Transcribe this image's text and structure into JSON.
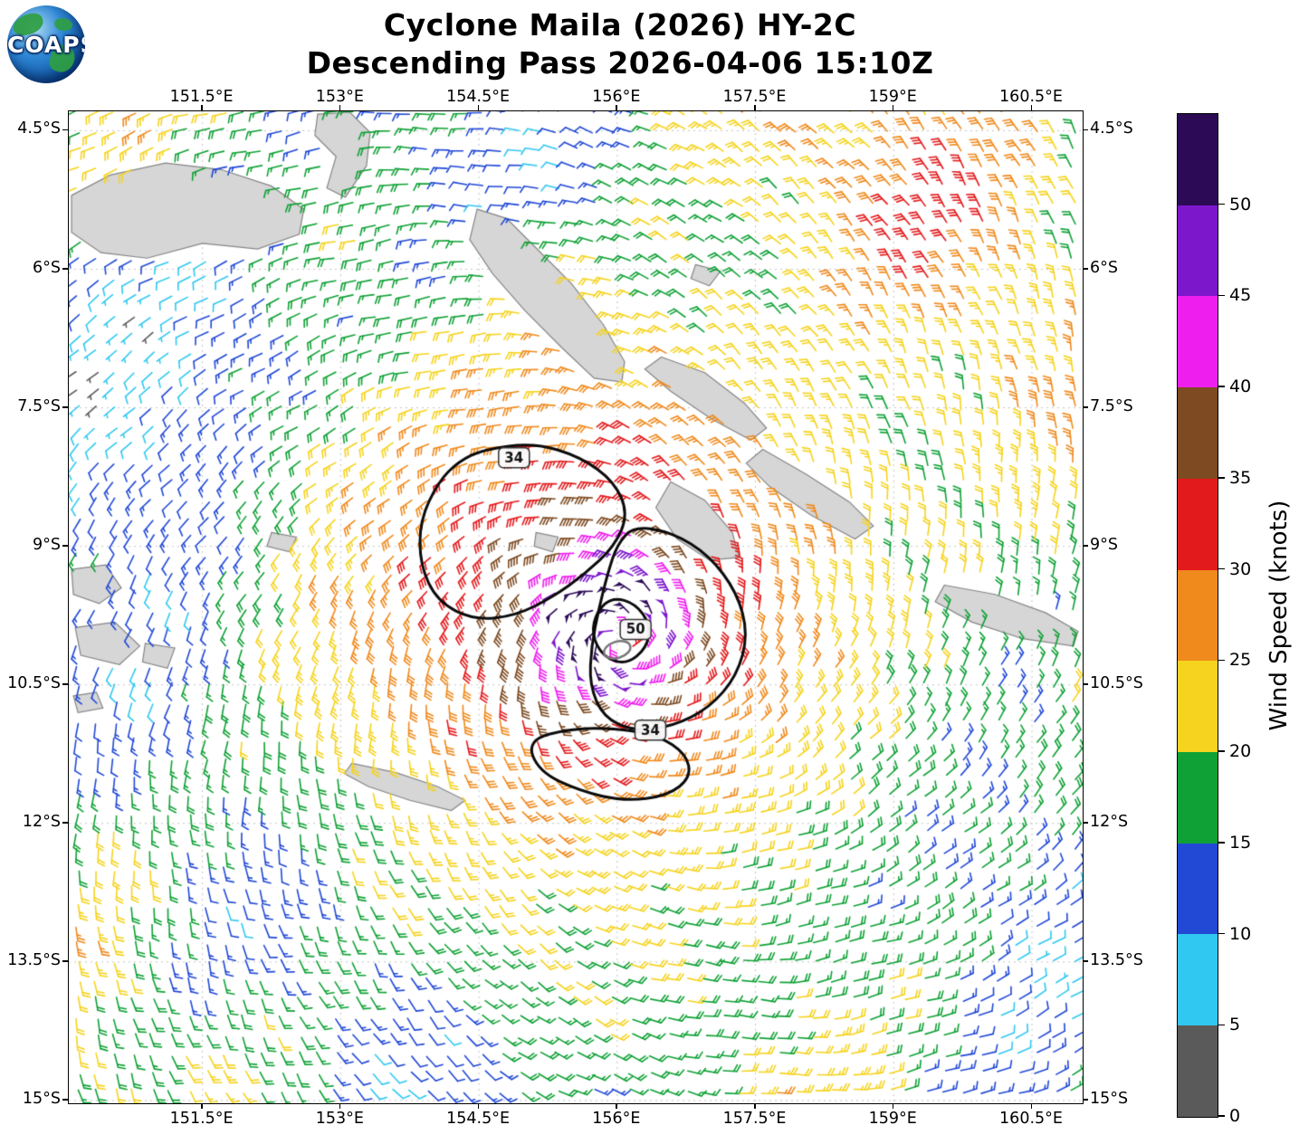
{
  "title": {
    "line1": "Cyclone Maila (2026) HY-2C",
    "line2": "Descending Pass 2026-04-06 15:10Z"
  },
  "logo": {
    "text": "COAPS"
  },
  "axes": {
    "lon_ticks": [
      {
        "value": 151.5,
        "label": "151.5°E"
      },
      {
        "value": 153.0,
        "label": "153°E"
      },
      {
        "value": 154.5,
        "label": "154.5°E"
      },
      {
        "value": 156.0,
        "label": "156°E"
      },
      {
        "value": 157.5,
        "label": "157.5°E"
      },
      {
        "value": 159.0,
        "label": "159°E"
      },
      {
        "value": 160.5,
        "label": "160.5°E"
      }
    ],
    "lat_ticks": [
      {
        "value": -4.5,
        "label": "4.5°S"
      },
      {
        "value": -6.0,
        "label": "6°S"
      },
      {
        "value": -7.5,
        "label": "7.5°S"
      },
      {
        "value": -9.0,
        "label": "9°S"
      },
      {
        "value": -10.5,
        "label": "10.5°S"
      },
      {
        "value": -12.0,
        "label": "12°S"
      },
      {
        "value": -13.5,
        "label": "13.5°S"
      },
      {
        "value": -15.0,
        "label": "15°S"
      }
    ]
  },
  "colorbar": {
    "label": "Wind Speed (knots)",
    "ticks": [
      0,
      5,
      10,
      15,
      20,
      25,
      30,
      35,
      40,
      45,
      50
    ],
    "max": 55,
    "segments": [
      {
        "min": 0,
        "max": 5,
        "color": "#5a5a5a"
      },
      {
        "min": 5,
        "max": 10,
        "color": "#30c8f0"
      },
      {
        "min": 10,
        "max": 15,
        "color": "#2149d6"
      },
      {
        "min": 15,
        "max": 20,
        "color": "#0fa135"
      },
      {
        "min": 20,
        "max": 25,
        "color": "#f5d31e"
      },
      {
        "min": 25,
        "max": 30,
        "color": "#f08a1d"
      },
      {
        "min": 30,
        "max": 35,
        "color": "#e31a1c"
      },
      {
        "min": 35,
        "max": 40,
        "color": "#7d4a21"
      },
      {
        "min": 40,
        "max": 45,
        "color": "#ee1fee"
      },
      {
        "min": 45,
        "max": 50,
        "color": "#7d17cc"
      },
      {
        "min": 50,
        "max": 55,
        "color": "#2c0a56"
      }
    ]
  },
  "chart_data": {
    "type": "scatter",
    "glyph": "wind_barbs",
    "description": "Satellite scatterometer surface wind barbs around Tropical Cyclone Maila; barb color encodes wind speed (knots); black contours mark the 34-kt and 50-kt wind radii",
    "storm_name": "Cyclone Maila (2026)",
    "satellite": "HY-2C",
    "pass_type": "Descending",
    "valid_time": "2026-04-06 15:10Z",
    "lon_range": [
      150.05,
      161.05
    ],
    "lat_range": [
      -15.03,
      -4.29
    ],
    "gridlines": true,
    "barb_spacing_deg": 0.2,
    "cyclone_center": {
      "lon": 156.05,
      "lat": -10.05
    },
    "center_marker": {
      "lon": 156.0,
      "lat": -10.12,
      "shape": "open-ellipse",
      "color": "#777777"
    },
    "estimated_max_wind_kt": 55,
    "estimated_radius_max_wind_deg": 0.45,
    "rotation": "clockwise (Southern Hemisphere)",
    "speed_bins_kt": [
      0,
      5,
      10,
      15,
      20,
      25,
      30,
      35,
      40,
      45,
      50
    ],
    "bin_colors": [
      "#5a5a5a",
      "#30c8f0",
      "#2149d6",
      "#0fa135",
      "#f5d31e",
      "#f08a1d",
      "#e31a1c",
      "#7d4a21",
      "#ee1fee",
      "#7d17cc",
      "#2c0a56"
    ],
    "contours": [
      {
        "label": "34",
        "label_pos": [
          154.88,
          -8.04
        ],
        "points": [
          [
            154.55,
            -7.95
          ],
          [
            155.1,
            -7.88
          ],
          [
            155.6,
            -8.03
          ],
          [
            155.97,
            -8.3
          ],
          [
            156.12,
            -8.65
          ],
          [
            155.97,
            -9.0
          ],
          [
            155.65,
            -9.3
          ],
          [
            155.3,
            -9.55
          ],
          [
            154.9,
            -9.75
          ],
          [
            154.45,
            -9.8
          ],
          [
            154.05,
            -9.6
          ],
          [
            153.86,
            -9.2
          ],
          [
            153.86,
            -8.72
          ],
          [
            154.06,
            -8.3
          ],
          [
            154.28,
            -8.08
          ]
        ]
      },
      {
        "label": null,
        "label_pos": null,
        "points": [
          [
            156.18,
            -8.78
          ],
          [
            156.6,
            -8.85
          ],
          [
            157.0,
            -9.1
          ],
          [
            157.3,
            -9.5
          ],
          [
            157.42,
            -9.95
          ],
          [
            157.3,
            -10.4
          ],
          [
            157.0,
            -10.75
          ],
          [
            156.6,
            -10.95
          ],
          [
            156.18,
            -11.0
          ],
          [
            155.85,
            -10.85
          ],
          [
            155.7,
            -10.5
          ],
          [
            155.72,
            -10.08
          ],
          [
            155.8,
            -9.68
          ],
          [
            155.9,
            -9.28
          ],
          [
            156.0,
            -8.98
          ]
        ]
      },
      {
        "label": "34",
        "label_pos": [
          156.36,
          -10.99
        ],
        "points": [
          [
            155.02,
            -11.1
          ],
          [
            155.5,
            -10.97
          ],
          [
            156.0,
            -10.97
          ],
          [
            156.45,
            -11.05
          ],
          [
            156.75,
            -11.25
          ],
          [
            156.8,
            -11.5
          ],
          [
            156.55,
            -11.7
          ],
          [
            156.08,
            -11.76
          ],
          [
            155.6,
            -11.65
          ],
          [
            155.15,
            -11.44
          ]
        ]
      },
      {
        "label": "50",
        "label_pos": [
          156.2,
          -9.9
        ],
        "points": [
          [
            155.95,
            -9.55
          ],
          [
            156.2,
            -9.62
          ],
          [
            156.36,
            -9.85
          ],
          [
            156.32,
            -10.1
          ],
          [
            156.1,
            -10.28
          ],
          [
            155.85,
            -10.2
          ],
          [
            155.72,
            -9.95
          ],
          [
            155.78,
            -9.7
          ]
        ]
      }
    ],
    "land_polygons": [
      {
        "name": "new-britain",
        "points": [
          [
            150.08,
            -5.2
          ],
          [
            150.5,
            -4.98
          ],
          [
            151.1,
            -4.85
          ],
          [
            151.7,
            -4.92
          ],
          [
            152.25,
            -5.1
          ],
          [
            152.6,
            -5.35
          ],
          [
            152.55,
            -5.62
          ],
          [
            152.1,
            -5.78
          ],
          [
            151.5,
            -5.72
          ],
          [
            150.9,
            -5.88
          ],
          [
            150.4,
            -5.82
          ],
          [
            150.08,
            -5.6
          ]
        ]
      },
      {
        "name": "new-ireland",
        "points": [
          [
            152.75,
            -4.32
          ],
          [
            153.1,
            -4.3
          ],
          [
            153.32,
            -4.52
          ],
          [
            153.28,
            -4.88
          ],
          [
            153.05,
            -5.22
          ],
          [
            152.85,
            -5.12
          ],
          [
            152.95,
            -4.78
          ],
          [
            152.72,
            -4.55
          ]
        ]
      },
      {
        "name": "bougainville",
        "points": [
          [
            154.48,
            -5.35
          ],
          [
            154.8,
            -5.45
          ],
          [
            155.1,
            -5.75
          ],
          [
            155.5,
            -6.15
          ],
          [
            155.85,
            -6.6
          ],
          [
            156.08,
            -7.0
          ],
          [
            156.05,
            -7.22
          ],
          [
            155.75,
            -7.18
          ],
          [
            155.4,
            -6.85
          ],
          [
            155.0,
            -6.45
          ],
          [
            154.65,
            -6.05
          ],
          [
            154.4,
            -5.68
          ]
        ]
      },
      {
        "name": "choiseul",
        "points": [
          [
            156.48,
            -6.95
          ],
          [
            156.95,
            -7.12
          ],
          [
            157.38,
            -7.45
          ],
          [
            157.62,
            -7.72
          ],
          [
            157.45,
            -7.85
          ],
          [
            157.02,
            -7.62
          ],
          [
            156.58,
            -7.32
          ],
          [
            156.3,
            -7.08
          ]
        ]
      },
      {
        "name": "santa-isabel",
        "points": [
          [
            157.58,
            -7.95
          ],
          [
            158.05,
            -8.22
          ],
          [
            158.52,
            -8.52
          ],
          [
            158.78,
            -8.78
          ],
          [
            158.58,
            -8.92
          ],
          [
            158.1,
            -8.66
          ],
          [
            157.65,
            -8.35
          ],
          [
            157.4,
            -8.1
          ]
        ]
      },
      {
        "name": "new-georgia",
        "points": [
          [
            156.58,
            -8.3
          ],
          [
            156.95,
            -8.5
          ],
          [
            157.25,
            -8.85
          ],
          [
            157.32,
            -9.12
          ],
          [
            157.0,
            -9.15
          ],
          [
            156.65,
            -8.92
          ],
          [
            156.42,
            -8.58
          ]
        ]
      },
      {
        "name": "guadalcanal",
        "points": [
          [
            159.55,
            -9.42
          ],
          [
            160.1,
            -9.52
          ],
          [
            160.65,
            -9.72
          ],
          [
            161.0,
            -9.92
          ],
          [
            160.95,
            -10.08
          ],
          [
            160.4,
            -10.0
          ],
          [
            159.85,
            -9.82
          ],
          [
            159.45,
            -9.6
          ]
        ]
      },
      {
        "name": "dentrecasteaux-a",
        "points": [
          [
            150.08,
            -9.25
          ],
          [
            150.45,
            -9.2
          ],
          [
            150.62,
            -9.45
          ],
          [
            150.38,
            -9.62
          ],
          [
            150.1,
            -9.52
          ]
        ]
      },
      {
        "name": "dentrecasteaux-b",
        "points": [
          [
            150.12,
            -9.88
          ],
          [
            150.55,
            -9.82
          ],
          [
            150.82,
            -10.08
          ],
          [
            150.6,
            -10.28
          ],
          [
            150.18,
            -10.18
          ]
        ]
      },
      {
        "name": "dentrecasteaux-c",
        "points": [
          [
            150.88,
            -10.05
          ],
          [
            151.2,
            -10.1
          ],
          [
            151.12,
            -10.32
          ],
          [
            150.85,
            -10.25
          ]
        ]
      },
      {
        "name": "dentrecasteaux-d",
        "points": [
          [
            150.1,
            -10.62
          ],
          [
            150.35,
            -10.58
          ],
          [
            150.42,
            -10.75
          ],
          [
            150.15,
            -10.8
          ]
        ]
      },
      {
        "name": "louisiade",
        "points": [
          [
            153.12,
            -11.35
          ],
          [
            153.6,
            -11.45
          ],
          [
            154.05,
            -11.6
          ],
          [
            154.35,
            -11.75
          ],
          [
            154.2,
            -11.86
          ],
          [
            153.75,
            -11.75
          ],
          [
            153.3,
            -11.6
          ],
          [
            153.04,
            -11.46
          ]
        ]
      },
      {
        "name": "trobriand",
        "points": [
          [
            152.25,
            -8.85
          ],
          [
            152.52,
            -8.9
          ],
          [
            152.45,
            -9.06
          ],
          [
            152.2,
            -9.0
          ]
        ]
      },
      {
        "name": "treasury",
        "points": [
          [
            155.12,
            -8.85
          ],
          [
            155.36,
            -8.9
          ],
          [
            155.3,
            -9.06
          ],
          [
            155.1,
            -9.0
          ]
        ]
      },
      {
        "name": "green-islands",
        "points": [
          [
            156.85,
            -5.95
          ],
          [
            157.12,
            -6.02
          ],
          [
            157.0,
            -6.18
          ],
          [
            156.8,
            -6.1
          ]
        ]
      }
    ]
  }
}
